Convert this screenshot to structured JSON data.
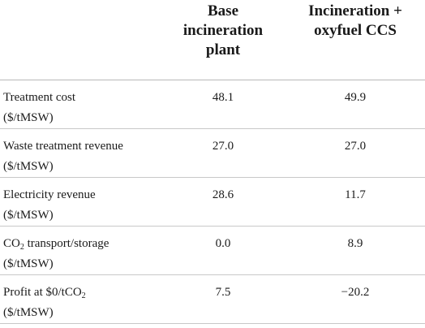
{
  "table": {
    "columns": [
      {
        "lines": [
          "Base",
          "incineration",
          "plant"
        ]
      },
      {
        "lines": [
          "Incineration +",
          "oxyfuel CCS"
        ]
      }
    ],
    "rows": [
      {
        "label_line1": "Treatment cost",
        "label_line2": "($/tMSW)",
        "values": [
          "48.1",
          "49.9"
        ]
      },
      {
        "label_line1": "Waste treatment revenue",
        "label_line2": "($/tMSW)",
        "values": [
          "27.0",
          "27.0"
        ]
      },
      {
        "label_line1": "Electricity revenue",
        "label_line2": "($/tMSW)",
        "values": [
          "28.6",
          "11.7"
        ]
      },
      {
        "label_line1_pre": "CO",
        "label_line1_sub": "2",
        "label_line1_post": " transport/storage",
        "label_line2": "($/tMSW)",
        "values": [
          "0.0",
          "8.9"
        ]
      },
      {
        "label_line1_pre": "Profit at $0/tCO",
        "label_line1_sub": "2",
        "label_line1_post": "",
        "label_line2": "($/tMSW)",
        "values": [
          "7.5",
          "−20.2"
        ]
      }
    ]
  }
}
